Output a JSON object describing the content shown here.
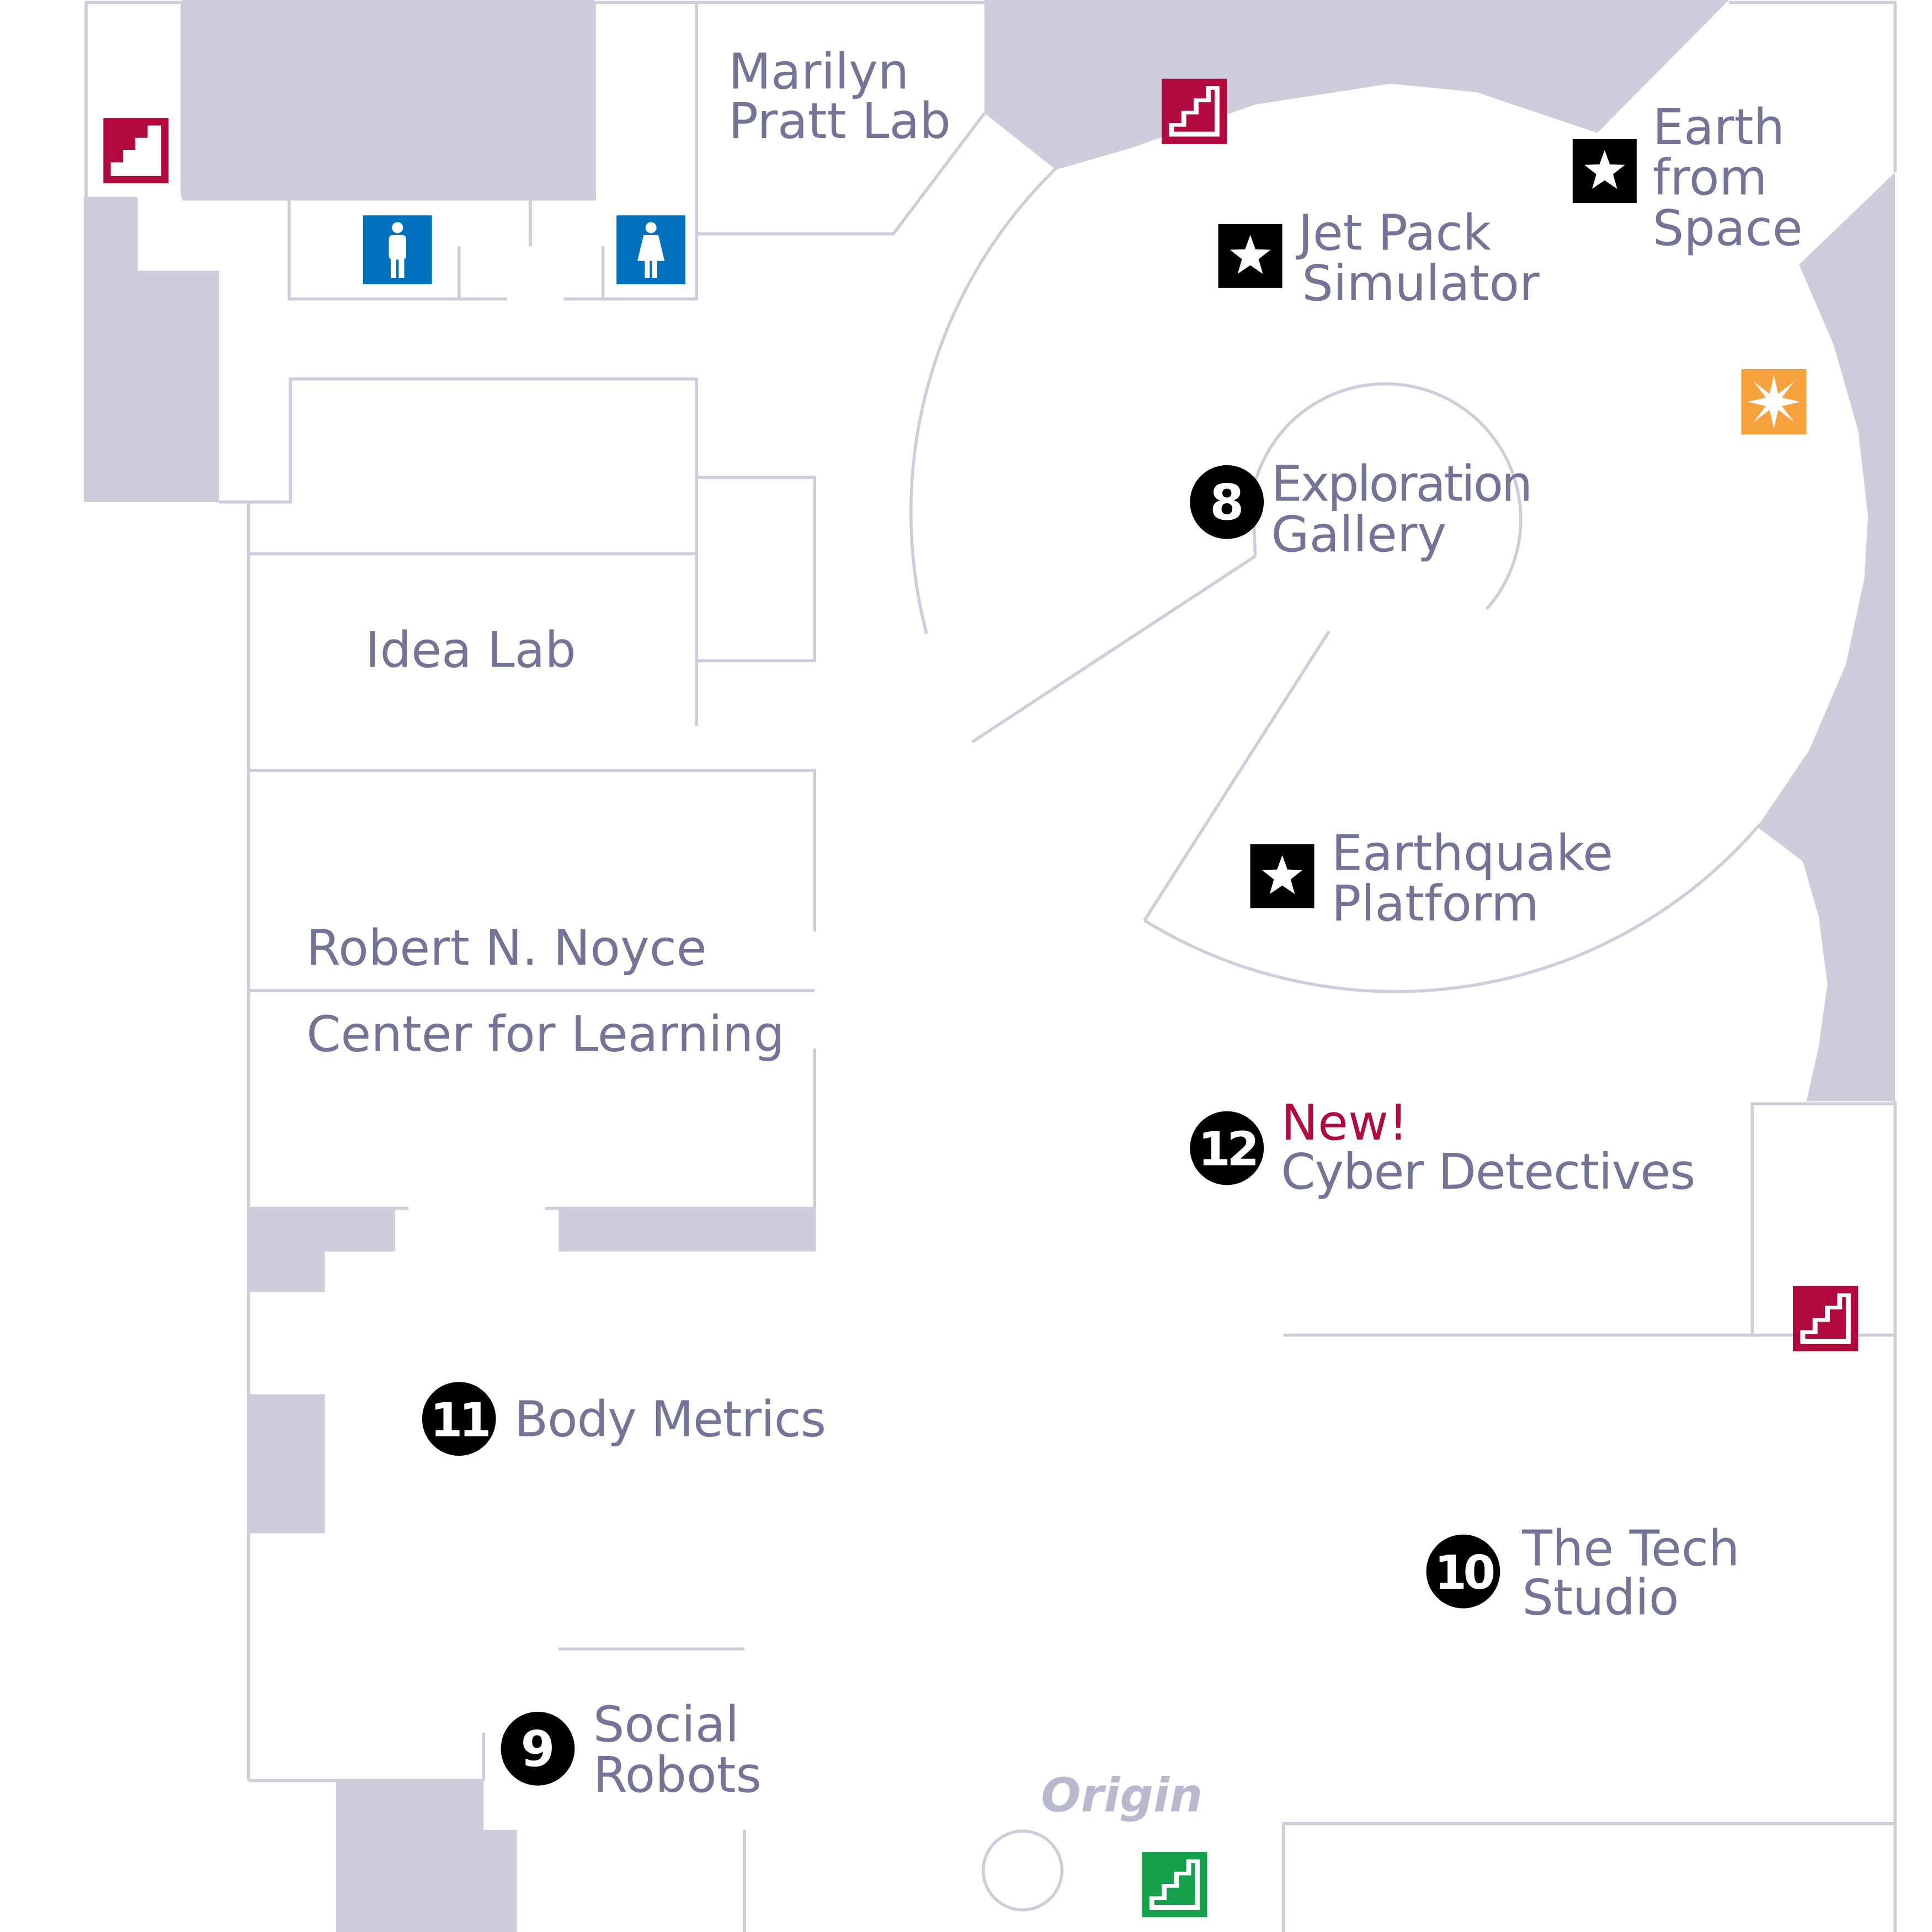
{
  "colors": {
    "wall": "#cdcddb",
    "line": "#cdcddb",
    "label": "#747497",
    "highlight": "#b00a3e",
    "stairs": "#b00a3e",
    "stairs_green": "#15a14b",
    "restroom": "#0071bc",
    "marker": "#000000",
    "info_sun": "#f7a13c",
    "origin": "#b8b8ce"
  },
  "rooms": {
    "marilyn": [
      "Marilyn",
      "Pratt Lab"
    ],
    "idea_lab": "Idea Lab",
    "noyce": [
      "Robert N. Noyce",
      "Center for Learning"
    ]
  },
  "icons": {
    "stairs": "stairs-icon",
    "restroom_men": "restroom-men-icon",
    "restroom_women": "restroom-women-icon",
    "star": "star-icon",
    "sun": "sun-burst-icon",
    "origin": "origin-circle-icon"
  },
  "exhibits": {
    "jet_pack": [
      "Jet Pack",
      "Simulator"
    ],
    "earth_space": [
      "Earth",
      "from",
      "Space"
    ],
    "earthquake": [
      "Earthquake",
      "Platform"
    ],
    "exploration": {
      "number": "8",
      "lines": [
        "Exploration",
        "Gallery"
      ]
    },
    "cyber": {
      "number": "12",
      "badge": "New!",
      "name": "Cyber Detectives"
    },
    "body_metrics": {
      "number": "11",
      "name": "Body Metrics"
    },
    "tech_studio": {
      "number": "10",
      "lines": [
        "The Tech",
        "Studio"
      ]
    },
    "social_robots": {
      "number": "9",
      "lines": [
        "Social",
        "Robots"
      ]
    }
  },
  "origin": "Origin"
}
